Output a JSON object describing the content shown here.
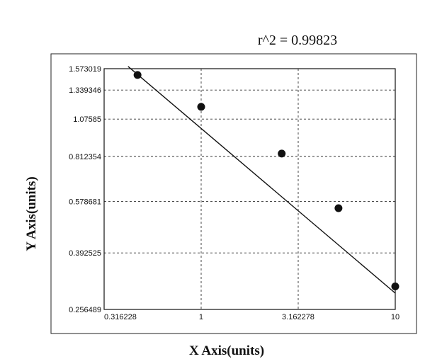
{
  "chart_data": {
    "type": "scatter",
    "title": "r^2 = 0.99823",
    "xlabel": "X Axis(units)",
    "ylabel": "Y Axis(units)",
    "x_scale": "log",
    "y_scale": "log",
    "xlim": [
      0.316228,
      10
    ],
    "ylim": [
      0.256489,
      1.573019
    ],
    "x_ticks": [
      "0.316228",
      "1",
      "3.162278",
      "10"
    ],
    "y_ticks": [
      "1.573019",
      "1.339346",
      "1.07585",
      "0.812354",
      "0.578681",
      "0.392525",
      "0.256489"
    ],
    "grid": true,
    "points": [
      {
        "x": 0.47,
        "y": 1.5
      },
      {
        "x": 1.0,
        "y": 1.18
      },
      {
        "x": 2.6,
        "y": 0.83
      },
      {
        "x": 5.1,
        "y": 0.55
      },
      {
        "x": 10.0,
        "y": 0.305
      }
    ],
    "fit_line": {
      "x": [
        0.42,
        10.0
      ],
      "y": [
        1.6,
        0.29
      ]
    }
  }
}
